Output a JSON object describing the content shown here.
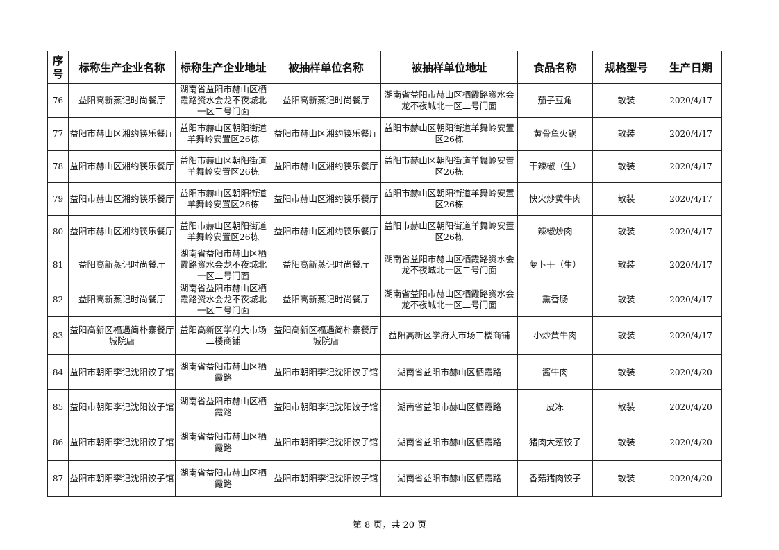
{
  "table": {
    "headers": [
      "序号",
      "标称生产企业名称",
      "标称生产企业地址",
      "被抽样单位名称",
      "被抽样单位地址",
      "食品名称",
      "规格型号",
      "生产日期"
    ],
    "rows": [
      [
        "76",
        "益阳高新蒸记时尚餐厅",
        "湖南省益阳市赫山区栖霞路资水会龙不夜城北一区二号门面",
        "益阳高新蒸记时尚餐厅",
        "湖南省益阳市赫山区栖霞路资水会龙不夜城北一区二号门面",
        "茄子豆角",
        "散装",
        "2020/4/17"
      ],
      [
        "77",
        "益阳市赫山区湘约筷乐餐厅",
        "益阳市赫山区朝阳街道羊舞岭安置区26栋",
        "益阳市赫山区湘约筷乐餐厅",
        "益阳市赫山区朝阳街道羊舞岭安置区26栋",
        "黄骨鱼火锅",
        "散装",
        "2020/4/17"
      ],
      [
        "78",
        "益阳市赫山区湘约筷乐餐厅",
        "益阳市赫山区朝阳街道羊舞岭安置区26栋",
        "益阳市赫山区湘约筷乐餐厅",
        "益阳市赫山区朝阳街道羊舞岭安置区26栋",
        "干辣椒（生）",
        "散装",
        "2020/4/17"
      ],
      [
        "79",
        "益阳市赫山区湘约筷乐餐厅",
        "益阳市赫山区朝阳街道羊舞岭安置区26栋",
        "益阳市赫山区湘约筷乐餐厅",
        "益阳市赫山区朝阳街道羊舞岭安置区26栋",
        "快火炒黄牛肉",
        "散装",
        "2020/4/17"
      ],
      [
        "80",
        "益阳市赫山区湘约筷乐餐厅",
        "益阳市赫山区朝阳街道羊舞岭安置区26栋",
        "益阳市赫山区湘约筷乐餐厅",
        "益阳市赫山区朝阳街道羊舞岭安置区26栋",
        "辣椒炒肉",
        "散装",
        "2020/4/17"
      ],
      [
        "81",
        "益阳高新蒸记时尚餐厅",
        "湖南省益阳市赫山区栖霞路资水会龙不夜城北一区二号门面",
        "益阳高新蒸记时尚餐厅",
        "湖南省益阳市赫山区栖霞路资水会龙不夜城北一区二号门面",
        "萝卜干（生）",
        "散装",
        "2020/4/17"
      ],
      [
        "82",
        "益阳高新蒸记时尚餐厅",
        "湖南省益阳市赫山区栖霞路资水会龙不夜城北一区二号门面",
        "益阳高新蒸记时尚餐厅",
        "湖南省益阳市赫山区栖霞路资水会龙不夜城北一区二号门面",
        "熏香肠",
        "散装",
        "2020/4/17"
      ],
      [
        "83",
        "益阳高新区福遇简朴寨餐厅城院店",
        "益阳高新区学府大市场二楼商铺",
        "益阳高新区福遇简朴寨餐厅城院店",
        "益阳高新区学府大市场二楼商铺",
        "小炒黄牛肉",
        "散装",
        "2020/4/17"
      ],
      [
        "84",
        "益阳市朝阳李记沈阳饺子馆",
        "湖南省益阳市赫山区栖霞路",
        "益阳市朝阳李记沈阳饺子馆",
        "湖南省益阳市赫山区栖霞路",
        "酱牛肉",
        "散装",
        "2020/4/20"
      ],
      [
        "85",
        "益阳市朝阳李记沈阳饺子馆",
        "湖南省益阳市赫山区栖霞路",
        "益阳市朝阳李记沈阳饺子馆",
        "湖南省益阳市赫山区栖霞路",
        "皮冻",
        "散装",
        "2020/4/20"
      ],
      [
        "86",
        "益阳市朝阳李记沈阳饺子馆",
        "湖南省益阳市赫山区栖霞路",
        "益阳市朝阳李记沈阳饺子馆",
        "湖南省益阳市赫山区栖霞路",
        "猪肉大葱饺子",
        "散装",
        "2020/4/20"
      ],
      [
        "87",
        "益阳市朝阳李记沈阳饺子馆",
        "湖南省益阳市赫山区栖霞路",
        "益阳市朝阳李记沈阳饺子馆",
        "湖南省益阳市赫山区栖霞路",
        "香菇猪肉饺子",
        "散装",
        "2020/4/20"
      ]
    ]
  },
  "footer": {
    "page_label": "第 8 页，共 20 页"
  }
}
